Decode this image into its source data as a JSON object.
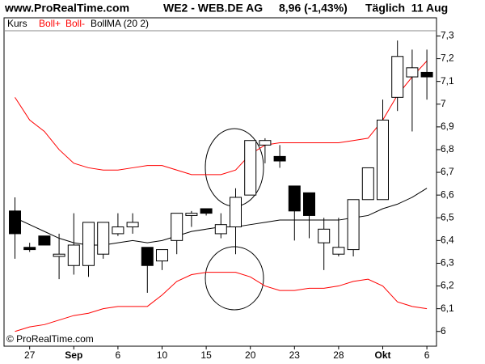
{
  "source": "www.ProRealTime.com",
  "instrument": "WE2 - WEB.DE AG",
  "quote": "8,96 (-1,43%)",
  "period": "Täglich  11 Aug",
  "copyright": "© ProRealTime.com",
  "chart_data": {
    "type": "candlestick",
    "categories": [
      null,
      "27",
      null,
      null,
      "Sep",
      null,
      null,
      "6",
      null,
      null,
      "10",
      null,
      null,
      "15",
      null,
      null,
      "20",
      null,
      null,
      "23",
      null,
      null,
      "28",
      null,
      null,
      "Okt",
      null,
      null,
      "6"
    ],
    "candles": {
      "name": "Kurs",
      "up_color": "#ffffff",
      "down_color": "#000000",
      "open": [
        6.53,
        6.37,
        6.42,
        6.33,
        6.29,
        6.29,
        6.34,
        6.43,
        6.46,
        6.37,
        6.31,
        6.4,
        6.51,
        6.54,
        6.43,
        6.46,
        6.6,
        6.82,
        6.77,
        6.64,
        6.61,
        6.39,
        6.34,
        6.36,
        6.58,
        6.58,
        7.03,
        7.12,
        7.14
      ],
      "high": [
        6.59,
        6.39,
        6.42,
        6.43,
        6.52,
        6.48,
        6.48,
        6.52,
        6.52,
        6.37,
        6.36,
        6.52,
        6.53,
        6.54,
        6.52,
        6.63,
        6.84,
        6.85,
        6.82,
        6.64,
        6.61,
        6.5,
        6.5,
        6.58,
        6.72,
        7.02,
        7.28,
        7.24,
        7.24
      ],
      "low": [
        6.32,
        6.35,
        6.38,
        6.23,
        6.25,
        6.24,
        6.32,
        6.42,
        6.43,
        6.17,
        6.27,
        6.34,
        6.46,
        6.51,
        6.41,
        6.34,
        6.6,
        6.74,
        6.72,
        6.4,
        6.41,
        6.27,
        6.33,
        6.33,
        6.58,
        6.58,
        6.97,
        6.88,
        7.02
      ],
      "close": [
        6.43,
        6.36,
        6.38,
        6.34,
        6.38,
        6.48,
        6.48,
        6.46,
        6.48,
        6.29,
        6.36,
        6.52,
        6.52,
        6.52,
        6.47,
        6.59,
        6.84,
        6.84,
        6.75,
        6.53,
        6.51,
        6.45,
        6.37,
        6.58,
        6.72,
        6.93,
        7.21,
        7.16,
        7.12
      ]
    },
    "series": [
      {
        "name": "Boll+",
        "color": "#ff0000",
        "values": [
          7.03,
          6.93,
          6.88,
          6.8,
          6.74,
          6.72,
          6.71,
          6.71,
          6.72,
          6.73,
          6.73,
          6.71,
          6.69,
          6.69,
          6.69,
          6.71,
          6.78,
          6.82,
          6.83,
          6.83,
          6.83,
          6.83,
          6.83,
          6.84,
          6.85,
          6.93,
          7.04,
          7.12,
          7.19
        ]
      },
      {
        "name": "Boll-",
        "color": "#ff0000",
        "values": [
          6.0,
          6.02,
          6.03,
          6.05,
          6.07,
          6.08,
          6.1,
          6.11,
          6.11,
          6.11,
          6.16,
          6.22,
          6.25,
          6.26,
          6.26,
          6.26,
          6.24,
          6.2,
          6.18,
          6.18,
          6.19,
          6.19,
          6.2,
          6.22,
          6.23,
          6.2,
          6.13,
          6.11,
          6.1
        ]
      },
      {
        "name": "BollMA (20 2)",
        "color": "#000000",
        "values": [
          6.5,
          6.47,
          6.44,
          6.41,
          6.39,
          6.38,
          6.38,
          6.39,
          6.4,
          6.39,
          6.4,
          6.42,
          6.44,
          6.45,
          6.46,
          6.46,
          6.47,
          6.48,
          6.49,
          6.49,
          6.49,
          6.49,
          6.49,
          6.5,
          6.51,
          6.54,
          6.56,
          6.59,
          6.63
        ]
      }
    ],
    "ylim": [
      5.935,
      7.38
    ],
    "yticks": [
      6,
      {
        "value": 6.1,
        "label": "6,1"
      },
      {
        "value": 6.2,
        "label": "6,2"
      },
      {
        "value": 6.3,
        "label": "6,3"
      },
      {
        "value": 6.4,
        "label": "6,4"
      },
      {
        "value": 6.5,
        "label": "6,5"
      },
      {
        "value": 6.6,
        "label": "6,6"
      },
      {
        "value": 6.7,
        "label": "6,7"
      },
      {
        "value": 6.8,
        "label": "6,8"
      },
      {
        "value": 6.9,
        "label": "6,9"
      },
      7,
      {
        "value": 7.1,
        "label": "7,1"
      },
      {
        "value": 7.2,
        "label": "7,2"
      },
      {
        "value": 7.3,
        "label": "7,3"
      }
    ],
    "grid": false
  }
}
